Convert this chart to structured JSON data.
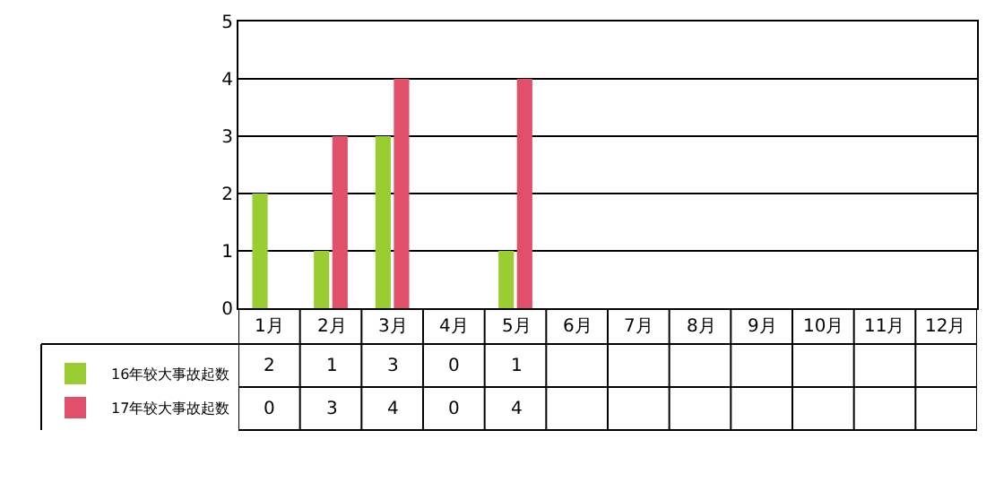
{
  "chart_data": {
    "type": "bar",
    "categories": [
      "1月",
      "2月",
      "3月",
      "4月",
      "5月",
      "6月",
      "7月",
      "8月",
      "9月",
      "10月",
      "11月",
      "12月"
    ],
    "series": [
      {
        "name": "16年较大事故起数",
        "color": "#9acd32",
        "values": [
          2,
          1,
          3,
          0,
          1,
          null,
          null,
          null,
          null,
          null,
          null,
          null
        ]
      },
      {
        "name": "17年较大事故起数",
        "color": "#e0506a",
        "values": [
          0,
          3,
          4,
          0,
          4,
          null,
          null,
          null,
          null,
          null,
          null,
          null
        ]
      }
    ],
    "ylim": [
      0,
      5
    ],
    "yticks": [
      0,
      1,
      2,
      3,
      4,
      5
    ],
    "grid": "y",
    "data_labels": true,
    "legend": "bottom left"
  }
}
